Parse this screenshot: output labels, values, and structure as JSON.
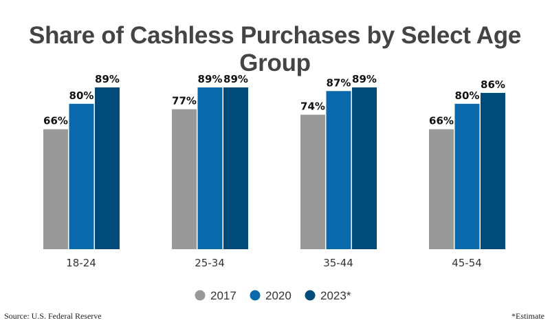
{
  "chart_data": {
    "type": "bar",
    "title": "Share of Cashless Purchases by Select Age Group",
    "categories": [
      "18-24",
      "25-34",
      "35-44",
      "45-54"
    ],
    "series": [
      {
        "name": "2017",
        "values": [
          66,
          77,
          74,
          66
        ],
        "color": "#999999"
      },
      {
        "name": "2020",
        "values": [
          80,
          89,
          87,
          80
        ],
        "color": "#0a69ab"
      },
      {
        "name": "2023*",
        "values": [
          89,
          89,
          89,
          86
        ],
        "color": "#004b7a"
      }
    ],
    "value_suffix": "%",
    "ylim": [
      0,
      89
    ],
    "grid": false,
    "legend": "bottom"
  },
  "source": "Source: U.S. Federal Reserve",
  "note": "*Estimate"
}
